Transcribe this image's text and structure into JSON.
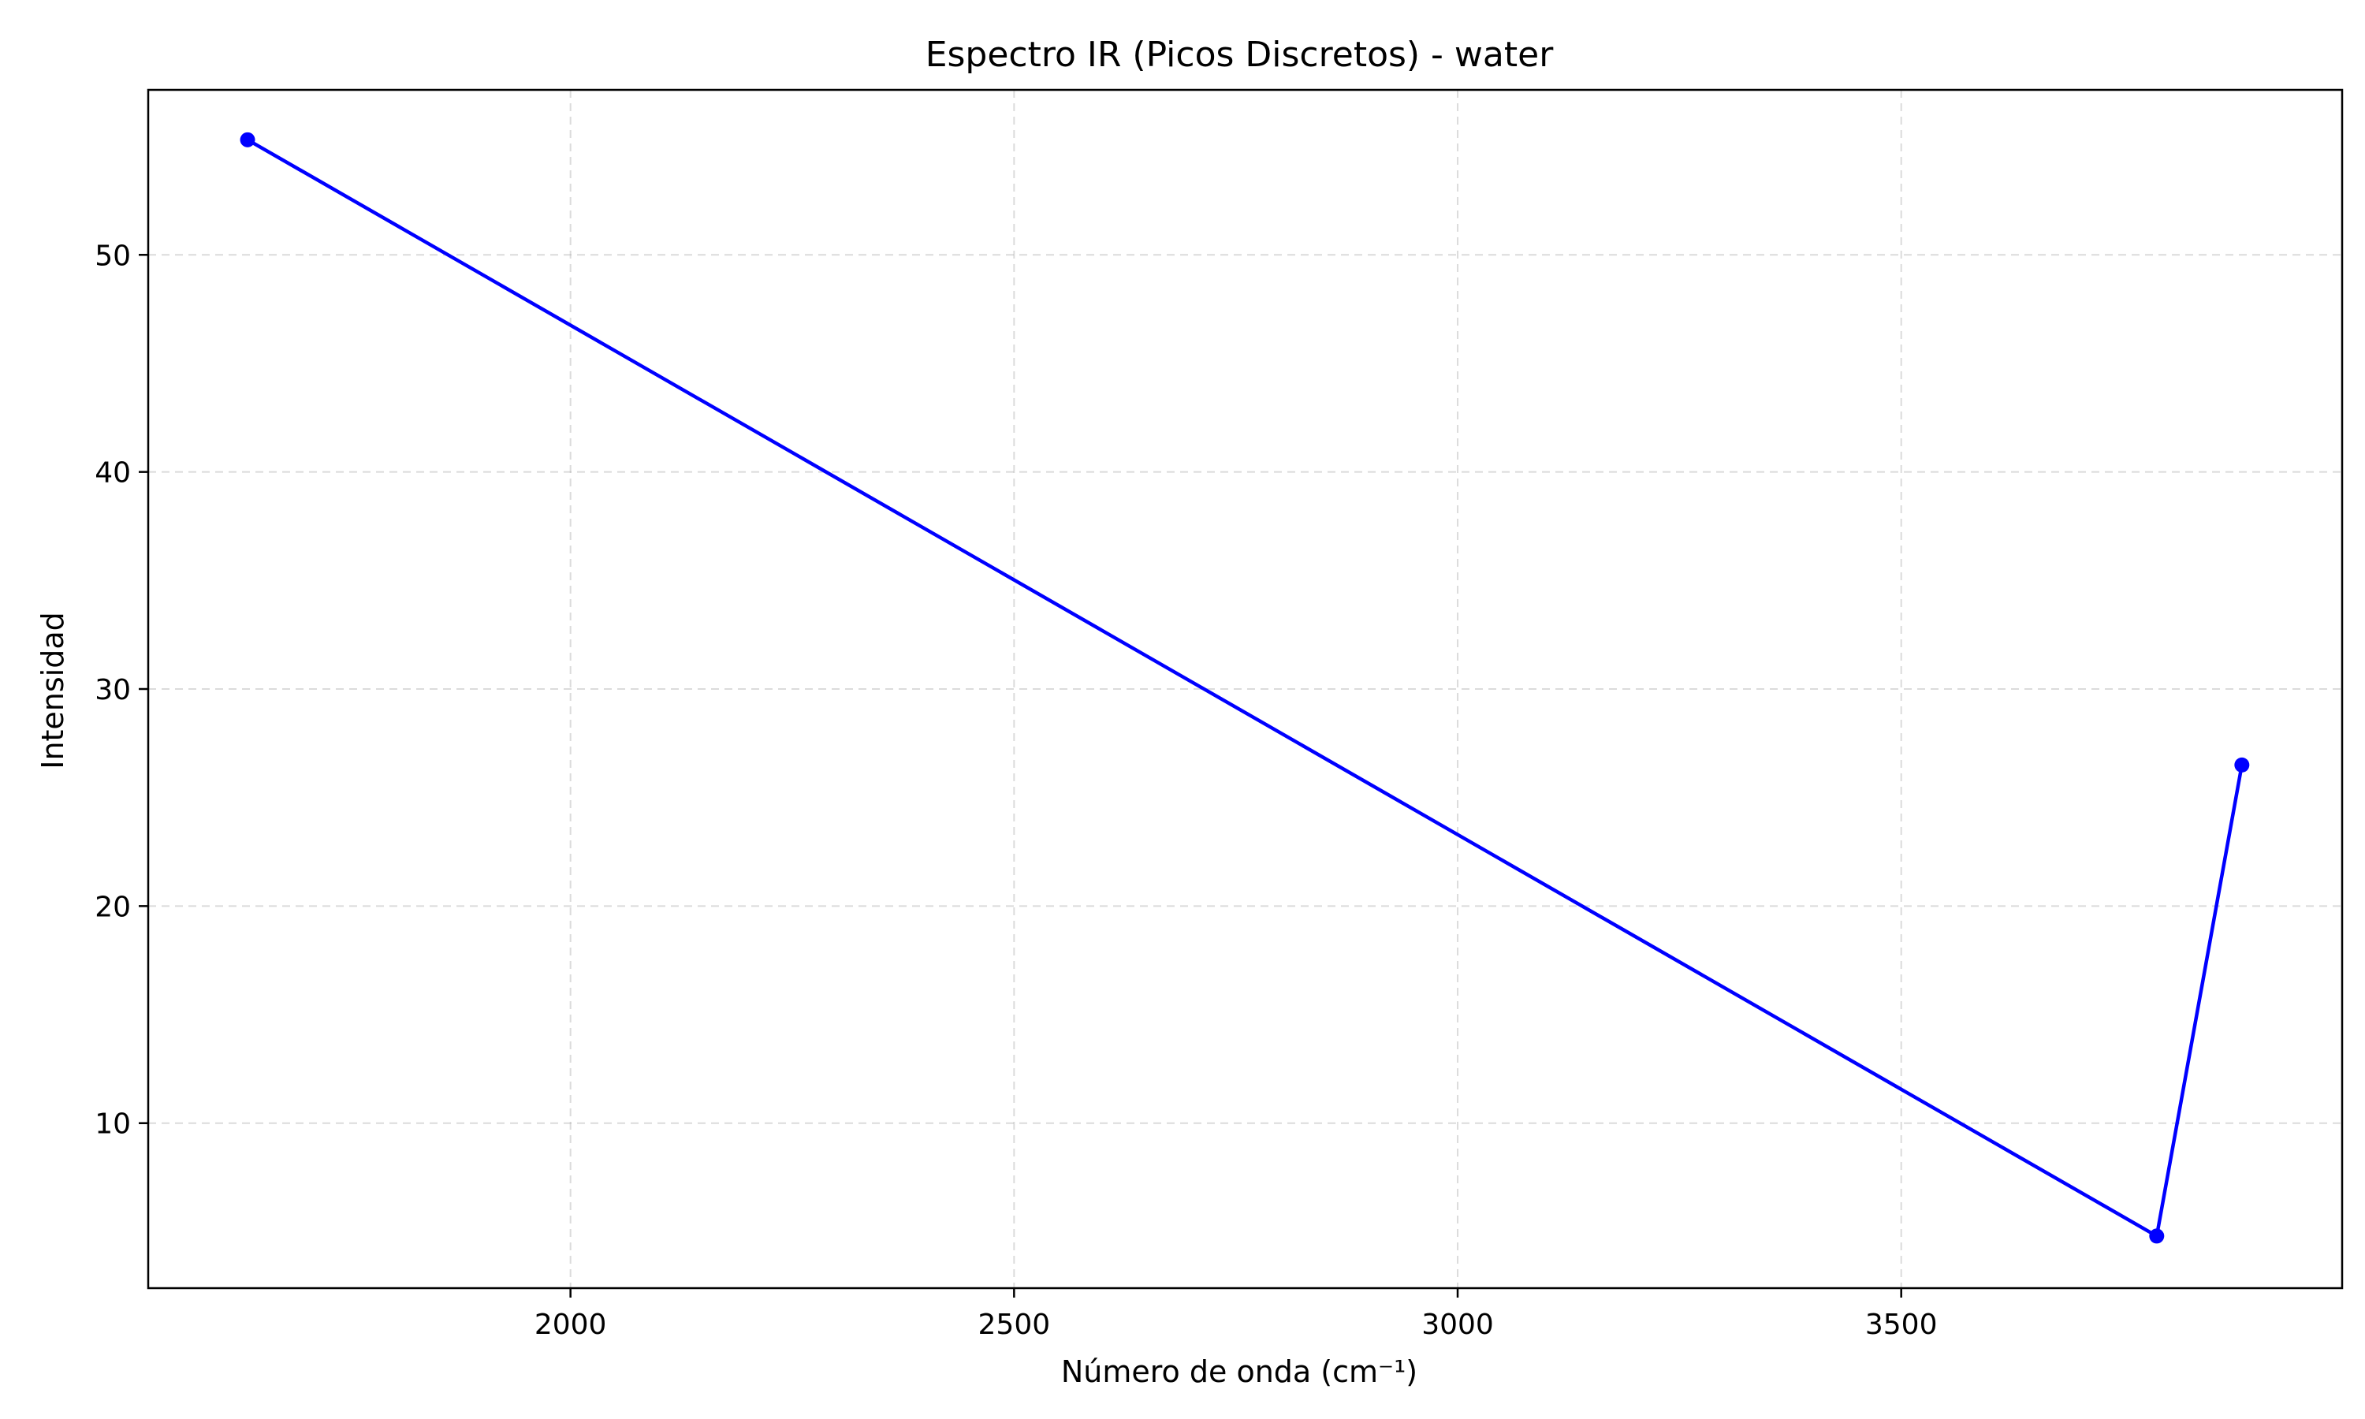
{
  "chart_data": {
    "type": "line",
    "title": "Espectro IR (Picos Discretos) - water",
    "xlabel": "Número de onda (cm⁻¹)",
    "ylabel": "Intensidad",
    "xlim": [
      1524,
      3997
    ],
    "ylim": [
      2.4,
      57.6
    ],
    "xticks": [
      2000,
      2500,
      3000,
      3500
    ],
    "yticks": [
      10,
      20,
      30,
      40,
      50
    ],
    "grid": true,
    "series": [
      {
        "color": "#0000ff",
        "marker": "circle",
        "x": [
          1636,
          3788,
          3884
        ],
        "y": [
          55.3,
          4.8,
          26.5
        ]
      }
    ]
  }
}
